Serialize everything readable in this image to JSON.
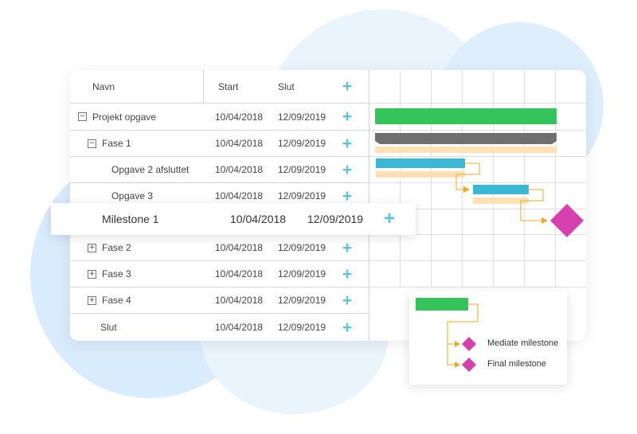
{
  "grid": {
    "headers": {
      "name": "Navn",
      "start": "Start",
      "end": "Slut",
      "add": "+"
    },
    "rows": [
      {
        "name": "Projekt opgave",
        "start": "10/04/2018",
        "end": "12/09/2019",
        "toggle": "−"
      },
      {
        "name": "Fase 1",
        "start": "10/04/2018",
        "end": "12/09/2019",
        "toggle": "−"
      },
      {
        "name": "Opgave 2 afsluttet",
        "start": "10/04/2018",
        "end": "12/09/2019"
      },
      {
        "name": "Opgave 3",
        "start": "10/04/2018",
        "end": "12/09/2019"
      },
      {
        "name": "Milestone 1",
        "start": "10/04/2018",
        "end": "12/09/2019"
      },
      {
        "name": "Fase 2",
        "start": "10/04/2018",
        "end": "12/09/2019",
        "toggle": "+"
      },
      {
        "name": "Fase 3",
        "start": "10/04/2018",
        "end": "12/09/2019",
        "toggle": "+"
      },
      {
        "name": "Fase 4",
        "start": "10/04/2018",
        "end": "12/09/2019",
        "toggle": "+"
      },
      {
        "name": "Slut",
        "start": "10/04/2018",
        "end": "12/09/2019"
      }
    ],
    "add_label": "+"
  },
  "legend": {
    "mediate": "Mediate milestone",
    "final": "Final milestone"
  },
  "colors": {
    "task_green": "#34c45b",
    "task_blue": "#3bb8d4",
    "baseline": "#fde0b3",
    "summary_gray": "#6f6f6f",
    "milestone": "#d63fae",
    "link": "#f5a623",
    "add_icon": "#5bc3dc"
  }
}
